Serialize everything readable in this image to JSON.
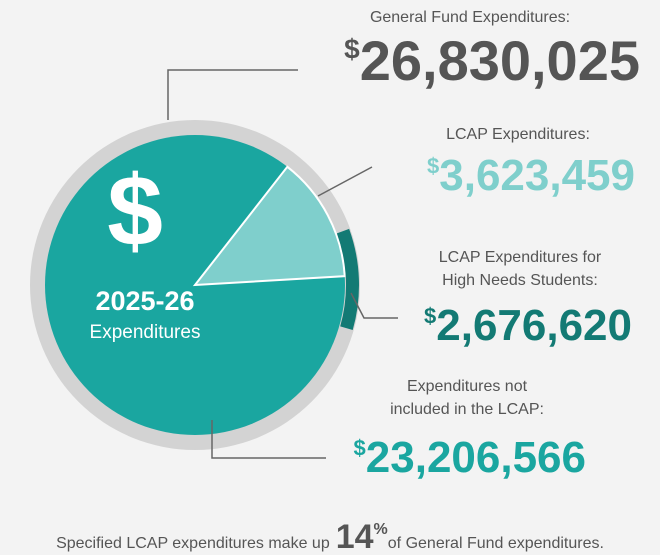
{
  "chart_data": {
    "type": "pie",
    "currency_symbol": "$",
    "center_title": "2025-26",
    "center_subtitle": "Expenditures",
    "items": [
      {
        "label_lines": [
          "General Fund Expenditures:"
        ],
        "value": 26830025,
        "value_label": "26,830,025",
        "color": "#555555"
      },
      {
        "label_lines": [
          "LCAP Expenditures:"
        ],
        "value": 3623459,
        "value_label": "3,623,459",
        "color": "#7fcfcc"
      },
      {
        "label_lines": [
          "LCAP Expenditures for",
          "High Needs Students:"
        ],
        "value": 2676620,
        "value_label": "2,676,620",
        "color": "#137a74"
      },
      {
        "label_lines": [
          "Expenditures not",
          "included in the LCAP:"
        ],
        "value": 23206566,
        "value_label": "23,206,566",
        "color": "#1aa6a0"
      }
    ],
    "footer": {
      "before": "Specified LCAP expenditures make up",
      "value": 14,
      "unit": "%",
      "after": "of General Fund expenditures."
    }
  }
}
